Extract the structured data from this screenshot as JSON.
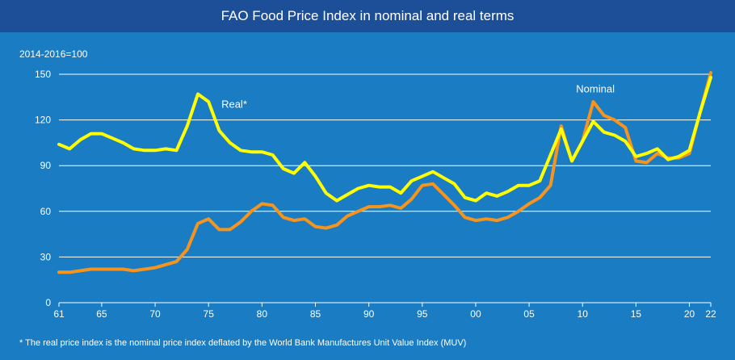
{
  "chart_data": {
    "type": "line",
    "title": "FAO Food Price Index in nominal and real terms",
    "unit_label": "2014-2016=100",
    "footnote": "* The real price index is the nominal price index deflated by the World Bank Manufactures Unit Value Index (MUV)",
    "xlabel": "",
    "ylabel": "",
    "ylim": [
      0,
      150
    ],
    "xlim": [
      1961,
      2022
    ],
    "y_ticks": [
      0,
      30,
      60,
      90,
      120,
      150
    ],
    "x_ticks": [
      {
        "year": 1961,
        "label": "61"
      },
      {
        "year": 1965,
        "label": "65"
      },
      {
        "year": 1970,
        "label": "70"
      },
      {
        "year": 1975,
        "label": "75"
      },
      {
        "year": 1980,
        "label": "80"
      },
      {
        "year": 1985,
        "label": "85"
      },
      {
        "year": 1990,
        "label": "90"
      },
      {
        "year": 1995,
        "label": "95"
      },
      {
        "year": 2000,
        "label": "00"
      },
      {
        "year": 2005,
        "label": "05"
      },
      {
        "year": 2010,
        "label": "10"
      },
      {
        "year": 2015,
        "label": "15"
      },
      {
        "year": 2020,
        "label": "20"
      },
      {
        "year": 2022,
        "label": "22"
      }
    ],
    "grid": true,
    "x": [
      1961,
      1962,
      1963,
      1964,
      1965,
      1966,
      1967,
      1968,
      1969,
      1970,
      1971,
      1972,
      1973,
      1974,
      1975,
      1976,
      1977,
      1978,
      1979,
      1980,
      1981,
      1982,
      1983,
      1984,
      1985,
      1986,
      1987,
      1988,
      1989,
      1990,
      1991,
      1992,
      1993,
      1994,
      1995,
      1996,
      1997,
      1998,
      1999,
      2000,
      2001,
      2002,
      2003,
      2004,
      2005,
      2006,
      2007,
      2008,
      2009,
      2010,
      2011,
      2012,
      2013,
      2014,
      2015,
      2016,
      2017,
      2018,
      2019,
      2020,
      2021,
      2022
    ],
    "series": [
      {
        "name": "Real*",
        "color": "#ffff00",
        "values": [
          104,
          101,
          107,
          111,
          111,
          108,
          105,
          101,
          100,
          100,
          101,
          100,
          116,
          137,
          132,
          113,
          105,
          100,
          99,
          99,
          97,
          88,
          85,
          92,
          83,
          72,
          67,
          71,
          75,
          77,
          76,
          76,
          72,
          80,
          83,
          86,
          82,
          78,
          69,
          67,
          72,
          70,
          73,
          77,
          77,
          80,
          97,
          114,
          93,
          106,
          119,
          112,
          110,
          106,
          96,
          98,
          101,
          94,
          96,
          100,
          125,
          148
        ]
      },
      {
        "name": "Nominal",
        "color": "#f7941d",
        "values": [
          20,
          20,
          21,
          22,
          22,
          22,
          22,
          21,
          22,
          23,
          25,
          27,
          35,
          52,
          55,
          48,
          48,
          53,
          60,
          65,
          64,
          56,
          54,
          55,
          50,
          49,
          51,
          57,
          60,
          63,
          63,
          64,
          62,
          68,
          77,
          78,
          71,
          64,
          56,
          54,
          55,
          54,
          56,
          60,
          65,
          69,
          77,
          116,
          93,
          106,
          132,
          123,
          120,
          115,
          93,
          92,
          98,
          95,
          95,
          98,
          125,
          151
        ]
      }
    ],
    "annotations": [
      {
        "text": "Real*",
        "series": "Real*"
      },
      {
        "text": "Nominal",
        "series": "Nominal"
      }
    ]
  }
}
